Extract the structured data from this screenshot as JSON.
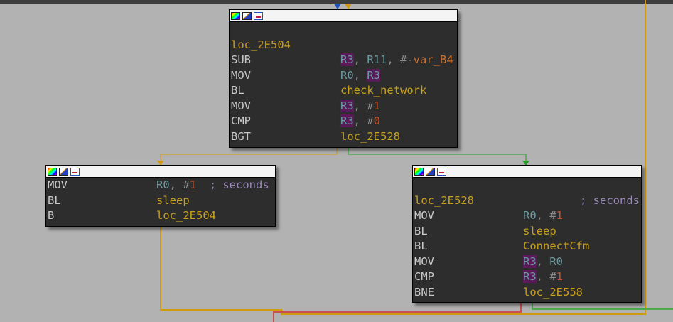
{
  "colors": {
    "background": "#b2b2b2",
    "block": "#2d2d2d",
    "label": "#c8a020",
    "register": "#6c9aa0",
    "highlight": "#5a1a5a",
    "number": "#c8542c",
    "edge_true": "#4caa4c",
    "edge_false": "#d09a10",
    "edge_back": "#c85050",
    "edge_entry": "#2050c0"
  },
  "blocks": [
    {
      "header_icons": [
        "color-icon",
        "pen-icon",
        "graph-icon"
      ],
      "label": "loc_2E504",
      "lines": [
        {
          "mnemonic": "SUB",
          "op1": "R3",
          "sep1": ", ",
          "op2": "R11",
          "sep2": ", #-",
          "op3": "var_B4"
        },
        {
          "mnemonic": "MOV",
          "op1": "R0",
          "sep1": ", ",
          "op2": "R3"
        },
        {
          "mnemonic": "BL",
          "op1": "check_network"
        },
        {
          "mnemonic": "MOV",
          "op1": "R3",
          "sep1": ", #",
          "op2": "1"
        },
        {
          "mnemonic": "CMP",
          "op1": "R3",
          "sep1": ", #",
          "op2": "0"
        },
        {
          "mnemonic": "BGT",
          "op1": "loc_2E528"
        }
      ]
    },
    {
      "header_icons": [
        "color-icon",
        "pen-icon",
        "graph-icon"
      ],
      "lines": [
        {
          "mnemonic": "MOV",
          "op1": "R0",
          "sep1": ", #",
          "op2": "1",
          "comment": "; seconds"
        },
        {
          "mnemonic": "BL",
          "op1": "sleep"
        },
        {
          "mnemonic": "B",
          "op1": "loc_2E504"
        }
      ]
    },
    {
      "header_icons": [
        "color-icon",
        "pen-icon",
        "graph-icon"
      ],
      "label": "loc_2E528",
      "label_comment": "; seconds",
      "lines": [
        {
          "mnemonic": "MOV",
          "op1": "R0",
          "sep1": ", #",
          "op2": "1"
        },
        {
          "mnemonic": "BL",
          "op1": "sleep"
        },
        {
          "mnemonic": "BL",
          "op1": "ConnectCfm"
        },
        {
          "mnemonic": "MOV",
          "op1": "R3",
          "sep1": ", ",
          "op2": "R0"
        },
        {
          "mnemonic": "CMP",
          "op1": "R3",
          "sep1": ", #",
          "op2": "1"
        },
        {
          "mnemonic": "BNE",
          "op1": "loc_2E558"
        }
      ]
    }
  ]
}
